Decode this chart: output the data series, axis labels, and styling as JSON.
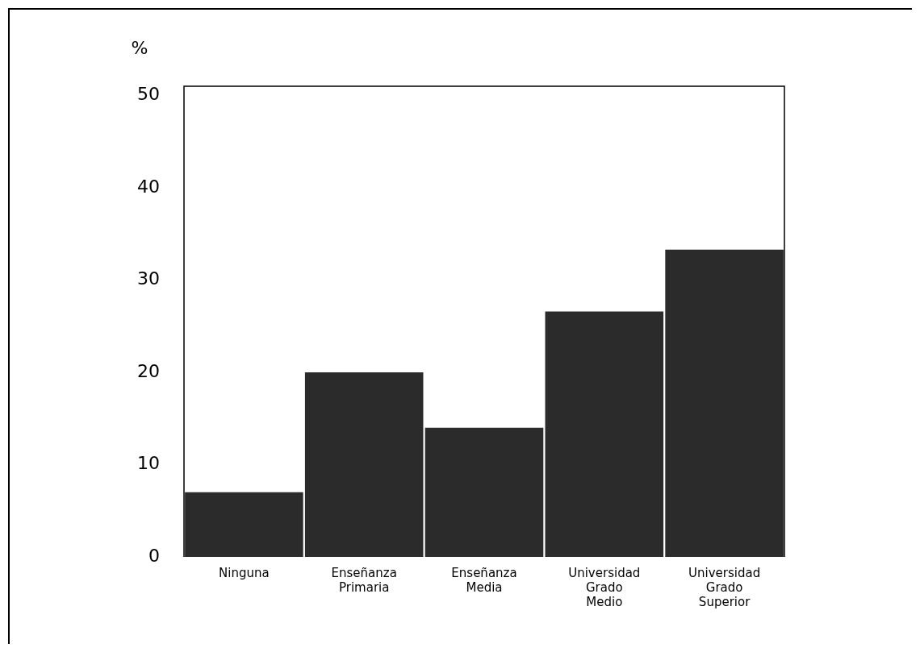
{
  "chart_data": {
    "type": "bar",
    "ylabel": "%",
    "categories": [
      "Ninguna",
      "Enseñanza\nPrimaria",
      "Enseñanza\nMedia",
      "Universidad\nGrado\nMedio",
      "Universidad\nGrado\nSuperior"
    ],
    "values": [
      7,
      20,
      14,
      26.6,
      33.3
    ],
    "color": "#2b2b2b",
    "ylim": [
      0,
      51
    ],
    "yticks": [
      0,
      10,
      20,
      30,
      40,
      50
    ],
    "grid": false,
    "legend": false
  }
}
